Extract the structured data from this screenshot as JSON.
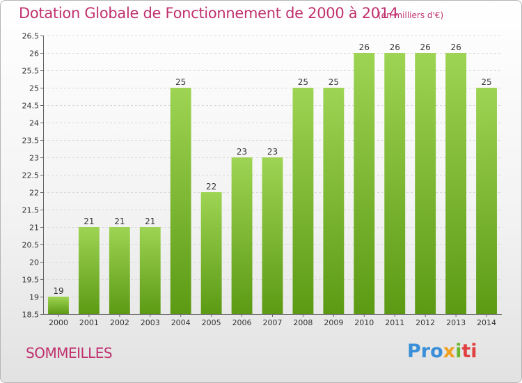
{
  "header": {
    "title": "Dotation Globale de Fonctionnement de 2000 à 2014",
    "unit": "(en milliers d'€)"
  },
  "footer": {
    "commune": "SOMMEILLES",
    "logo": {
      "p1": "Pro",
      "p2": "x",
      "p3": "i",
      "p4": "ti"
    }
  },
  "colors": {
    "bar_top": "#9ed453",
    "bar_bottom": "#5c9a14",
    "title": "#c0306e"
  },
  "chart_data": {
    "type": "bar",
    "title": "Dotation Globale de Fonctionnement de 2000 à 2014",
    "subtitle": "(en milliers d'€)",
    "categories": [
      "2000",
      "2001",
      "2002",
      "2003",
      "2004",
      "2005",
      "2006",
      "2007",
      "2008",
      "2009",
      "2010",
      "2011",
      "2012",
      "2013",
      "2014"
    ],
    "values": [
      19,
      21,
      21,
      21,
      25,
      22,
      23,
      23,
      25,
      25,
      26,
      26,
      26,
      26,
      25
    ],
    "data_labels": [
      "19",
      "21",
      "21",
      "21",
      "25",
      "22",
      "23",
      "23",
      "25",
      "25",
      "26",
      "26",
      "26",
      "26",
      "25"
    ],
    "ylim": [
      18.5,
      26.5
    ],
    "yticks": [
      18.5,
      19,
      19.5,
      20,
      20.5,
      21,
      21.5,
      22,
      22.5,
      23,
      23.5,
      24,
      24.5,
      25,
      25.5,
      26,
      26.5
    ],
    "ytick_labels": [
      "18.5",
      "19",
      "19.5",
      "20",
      "20.5",
      "21",
      "21.5",
      "22",
      "22.5",
      "23",
      "23.5",
      "24",
      "24.5",
      "25",
      "25.5",
      "26",
      "26.5"
    ],
    "grid": true,
    "legend": "none"
  }
}
